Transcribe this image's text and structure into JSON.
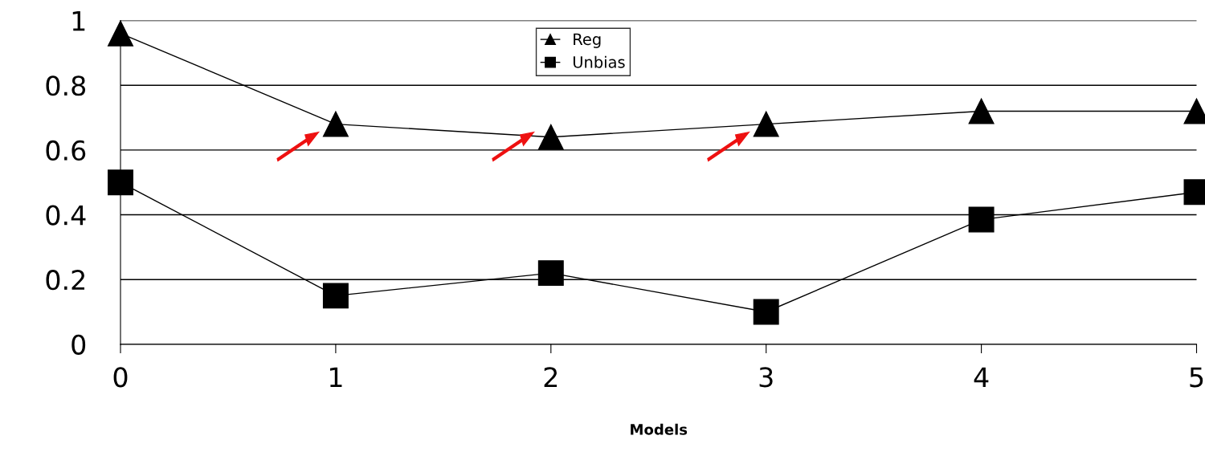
{
  "chart_data": {
    "type": "line",
    "xlabel": "Models",
    "x": [
      0,
      1,
      2,
      3,
      4,
      5
    ],
    "series": [
      {
        "name": "Reg",
        "color": "#000000",
        "marker": "triangle",
        "values": [
          0.96,
          0.68,
          0.64,
          0.68,
          0.72,
          0.72
        ]
      },
      {
        "name": "Unbias",
        "color": "#000000",
        "marker": "square",
        "values": [
          0.5,
          0.15,
          0.22,
          0.1,
          0.385,
          0.47
        ]
      }
    ],
    "xlim": [
      0,
      5
    ],
    "xticks": [
      0,
      1,
      2,
      3,
      4,
      5
    ],
    "ylim": [
      0,
      1
    ],
    "yticks": [
      0,
      0.2,
      0.4,
      0.6,
      0.8,
      1
    ],
    "grid": "y",
    "legend": "top",
    "line_style": "solid"
  }
}
